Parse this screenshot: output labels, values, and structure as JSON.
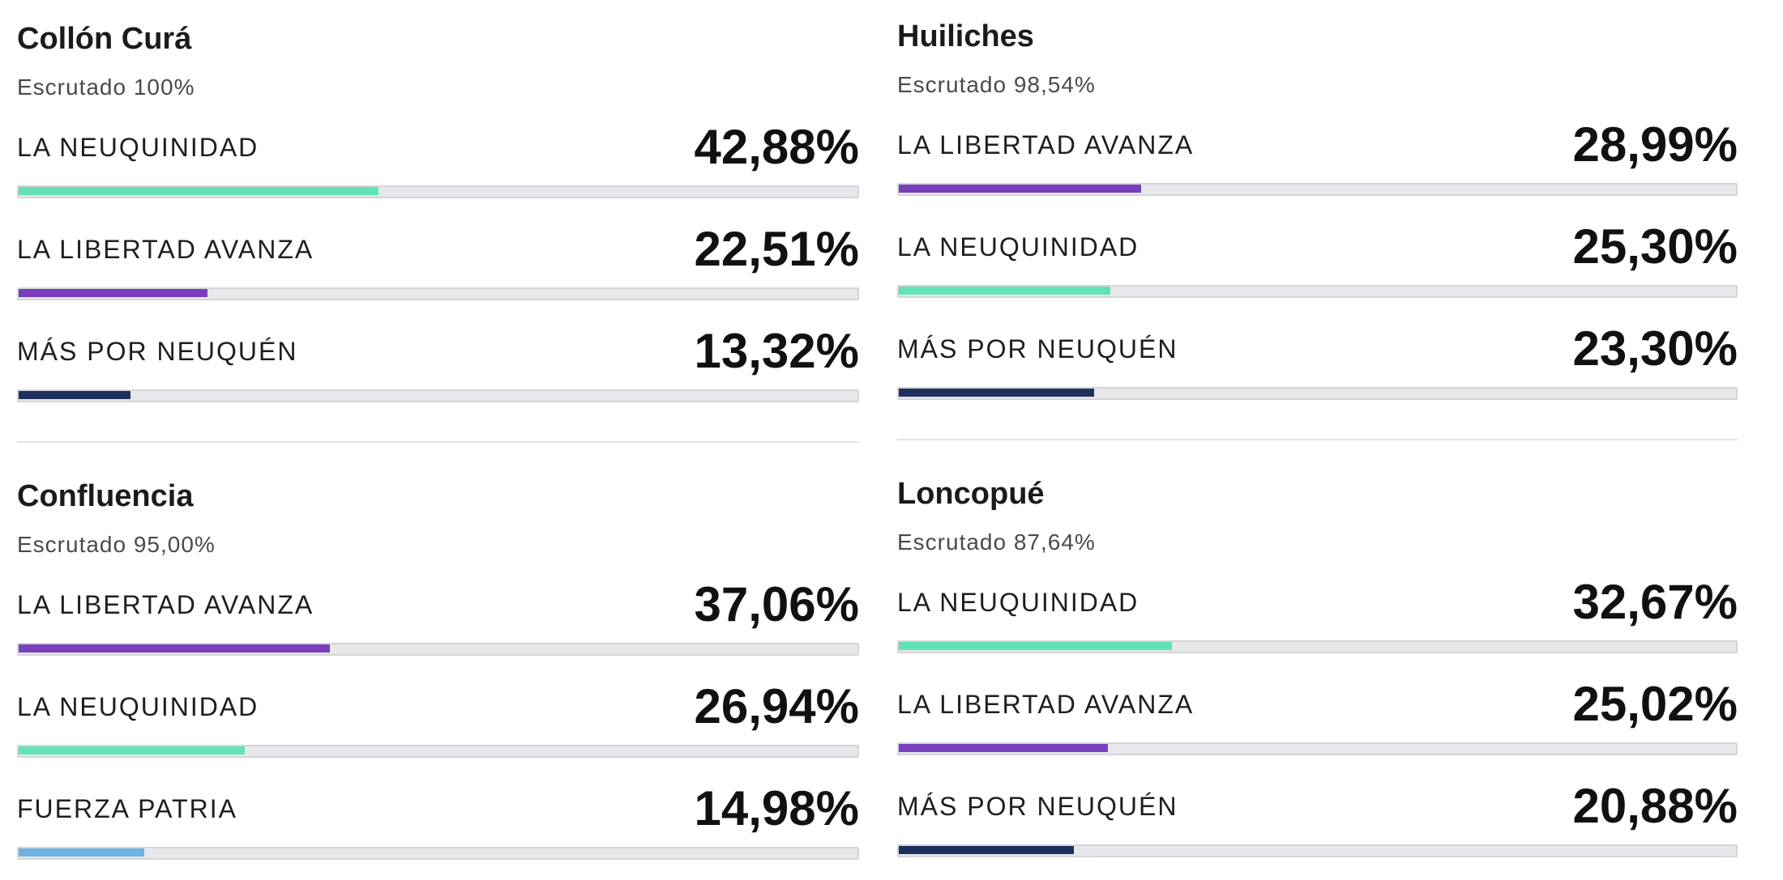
{
  "regions": [
    {
      "title": "Collón Curá",
      "escrutado": "Escrutado 100%",
      "results": [
        {
          "party": "LA NEUQUINIDAD",
          "percent": "42,88%",
          "value": 42.88,
          "color": "#62e3b5"
        },
        {
          "party": "LA LIBERTAD AVANZA",
          "percent": "22,51%",
          "value": 22.51,
          "color": "#7a3fbd"
        },
        {
          "party": "MÁS POR NEUQUÉN",
          "percent": "13,32%",
          "value": 13.32,
          "color": "#1f2f5e"
        }
      ]
    },
    {
      "title": "Huiliches",
      "escrutado": "Escrutado 98,54%",
      "results": [
        {
          "party": "LA LIBERTAD AVANZA",
          "percent": "28,99%",
          "value": 28.99,
          "color": "#7a3fbd"
        },
        {
          "party": "LA NEUQUINIDAD",
          "percent": "25,30%",
          "value": 25.3,
          "color": "#62e3b5"
        },
        {
          "party": "MÁS POR NEUQUÉN",
          "percent": "23,30%",
          "value": 23.3,
          "color": "#1f2f5e"
        }
      ]
    },
    {
      "title": "Confluencia",
      "escrutado": "Escrutado 95,00%",
      "results": [
        {
          "party": "LA LIBERTAD AVANZA",
          "percent": "37,06%",
          "value": 37.06,
          "color": "#7a3fbd"
        },
        {
          "party": "LA NEUQUINIDAD",
          "percent": "26,94%",
          "value": 26.94,
          "color": "#62e3b5"
        },
        {
          "party": "FUERZA PATRIA",
          "percent": "14,98%",
          "value": 14.98,
          "color": "#6cb2e2"
        }
      ]
    },
    {
      "title": "Loncopué",
      "escrutado": "Escrutado 87,64%",
      "results": [
        {
          "party": "LA NEUQUINIDAD",
          "percent": "32,67%",
          "value": 32.67,
          "color": "#62e3b5"
        },
        {
          "party": "LA LIBERTAD AVANZA",
          "percent": "25,02%",
          "value": 25.02,
          "color": "#7a3fbd"
        },
        {
          "party": "MÁS POR NEUQUÉN",
          "percent": "20,88%",
          "value": 20.88,
          "color": "#1f2f5e"
        }
      ]
    }
  ]
}
